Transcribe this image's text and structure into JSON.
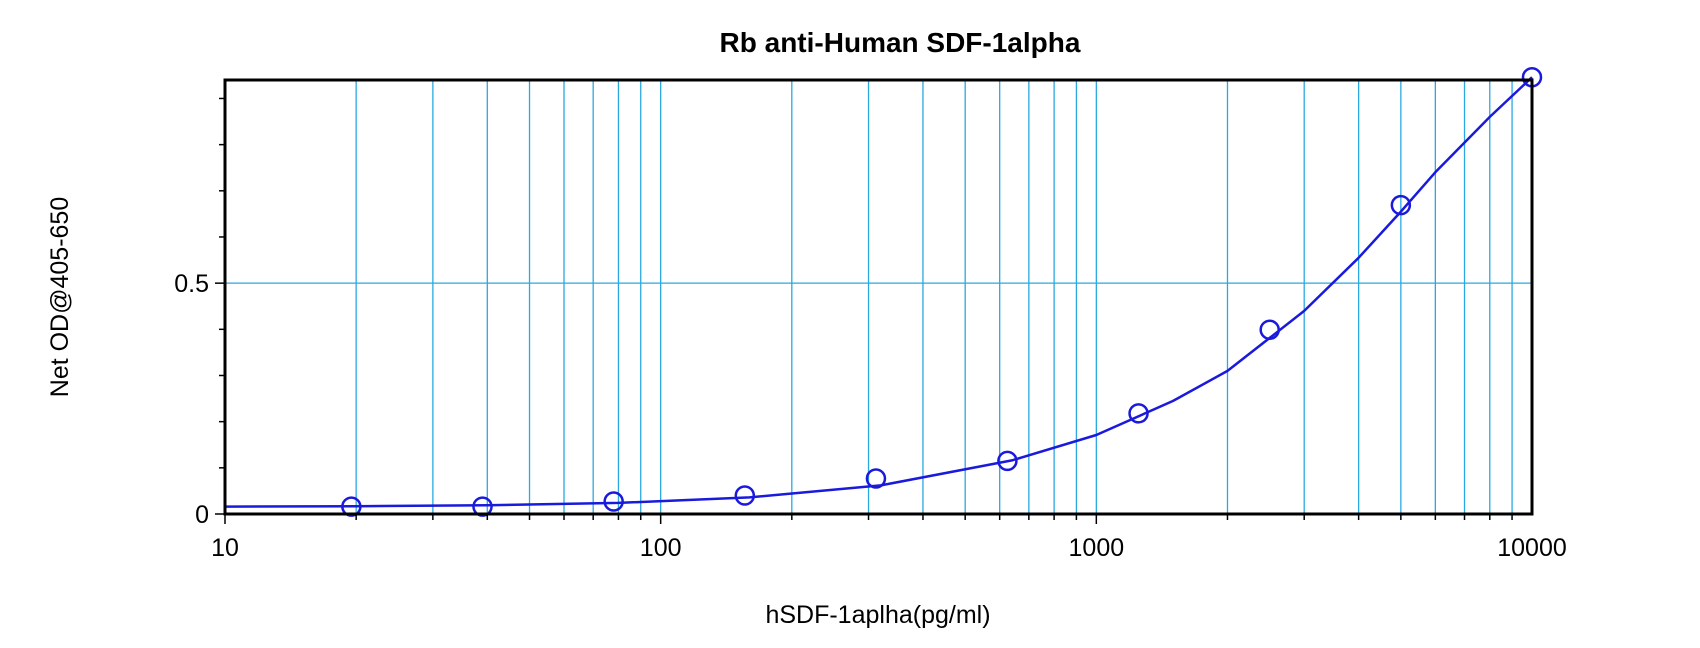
{
  "chart_data": {
    "type": "scatter",
    "title": "Rb anti-Human SDF-1alpha",
    "xlabel": "hSDF-1aplha(pg/ml)",
    "ylabel": "Net OD@405-650",
    "x_scale": "log",
    "xlim": [
      10,
      10000
    ],
    "ylim": [
      0,
      0.94
    ],
    "x_ticks": [
      10,
      100,
      1000,
      10000
    ],
    "x_tick_labels": [
      "10",
      "100",
      "1000",
      "10000"
    ],
    "y_ticks": [
      0,
      0.5
    ],
    "y_tick_labels": [
      "0",
      "0.5"
    ],
    "grid": true,
    "legend": "none",
    "colors": {
      "series": "#1a1adc",
      "grid": "#29a9e0",
      "frame": "#000000"
    },
    "series": [
      {
        "x": [
          19.5,
          39,
          78,
          156,
          312,
          625,
          1250,
          2500,
          5000,
          10000
        ],
        "y": [
          0.016,
          0.016,
          0.027,
          0.04,
          0.077,
          0.115,
          0.218,
          0.399,
          0.669,
          0.946
        ],
        "marker": "open-circle"
      }
    ],
    "fit_curve": {
      "x": [
        10,
        20,
        40,
        80,
        160,
        320,
        640,
        1000,
        1500,
        2000,
        3000,
        4000,
        5000,
        6000,
        8000,
        10000
      ],
      "y": [
        0.016,
        0.017,
        0.019,
        0.024,
        0.036,
        0.062,
        0.116,
        0.171,
        0.245,
        0.31,
        0.44,
        0.555,
        0.655,
        0.74,
        0.86,
        0.946
      ]
    }
  }
}
